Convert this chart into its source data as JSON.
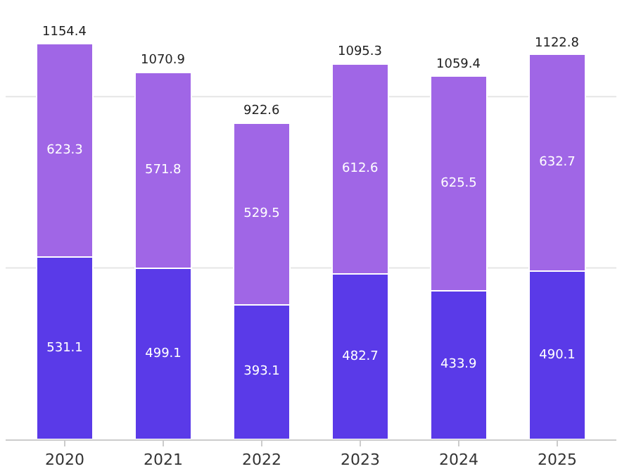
{
  "chart_data": {
    "type": "bar",
    "stacked": true,
    "categories": [
      "2020",
      "2021",
      "2022",
      "2023",
      "2024",
      "2025"
    ],
    "series": [
      {
        "color": "#5a3ae8",
        "values": [
          531.1,
          499.1,
          393.1,
          482.7,
          433.9,
          490.1
        ]
      },
      {
        "color": "#a066e6",
        "values": [
          623.3,
          571.8,
          529.5,
          612.6,
          625.5,
          632.7
        ]
      }
    ],
    "data_labels": true,
    "totals": [
      "1154.4",
      "1070.9",
      "922.6",
      "1095.3",
      "1059.4",
      "1122.8"
    ],
    "ref_lines": [
      {
        "axis": "y",
        "value": 500,
        "color": "#e6e6e6"
      },
      {
        "axis": "y",
        "value": 1000,
        "color": "#e6e6e6"
      }
    ],
    "tick_labels": "x"
  }
}
